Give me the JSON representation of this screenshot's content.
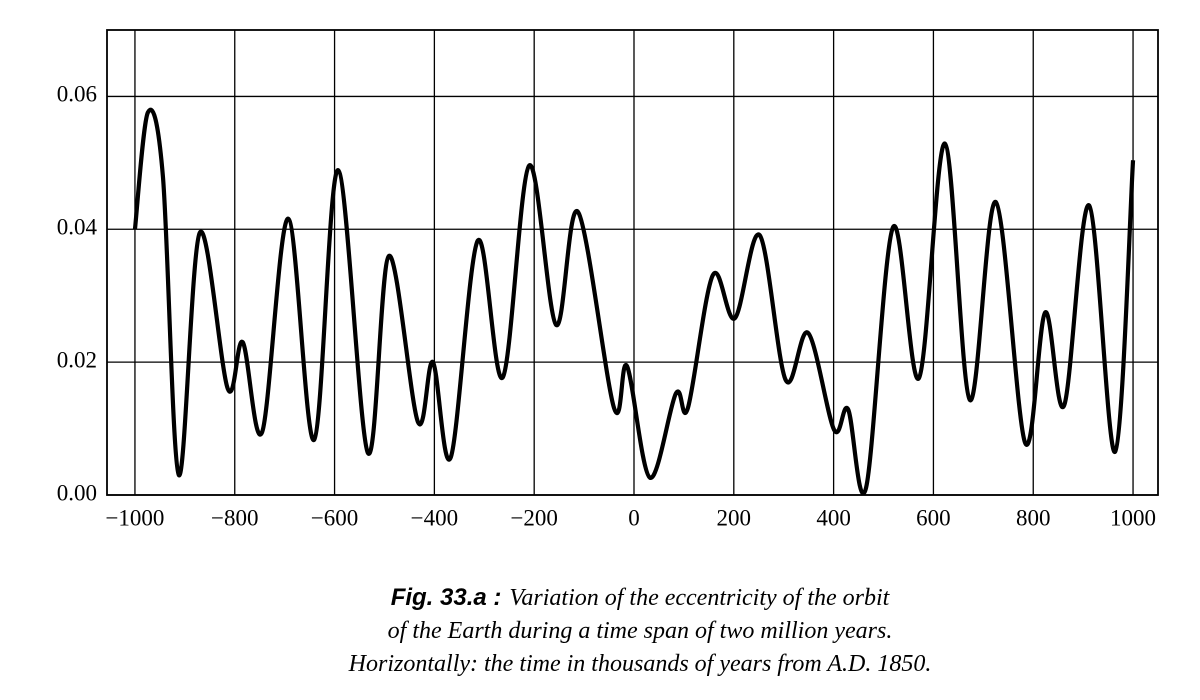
{
  "chart_data": {
    "type": "line",
    "x": [
      -1000,
      -974,
      -944,
      -912,
      -870,
      -814,
      -784,
      -745,
      -693,
      -641,
      -593,
      -533,
      -491,
      -433,
      -403,
      -367,
      -313,
      -263,
      -210,
      -156,
      -112,
      -40,
      -14,
      32,
      84,
      108,
      158,
      202,
      252,
      304,
      349,
      401,
      429,
      465,
      519,
      571,
      623,
      673,
      725,
      784,
      824,
      862,
      912,
      964,
      1000
    ],
    "values": [
      0.04,
      0.0576,
      0.048,
      0.003,
      0.0395,
      0.016,
      0.023,
      0.0095,
      0.0416,
      0.0083,
      0.0489,
      0.0063,
      0.036,
      0.011,
      0.02,
      0.0057,
      0.0383,
      0.0177,
      0.0496,
      0.0256,
      0.0426,
      0.0131,
      0.0194,
      0.0026,
      0.0153,
      0.0131,
      0.0331,
      0.0266,
      0.0391,
      0.0173,
      0.0244,
      0.0098,
      0.0129,
      0.0011,
      0.0403,
      0.0176,
      0.0529,
      0.0143,
      0.0441,
      0.0078,
      0.0275,
      0.0135,
      0.0436,
      0.0065,
      0.0504
    ],
    "color": "#000000",
    "xlim": [
      -1056,
      1050
    ],
    "ylim": [
      0,
      0.07
    ],
    "xticks": [
      {
        "value": -1000,
        "label": "−1000"
      },
      {
        "value": -800,
        "label": "−800"
      },
      {
        "value": -600,
        "label": "−600"
      },
      {
        "value": -400,
        "label": "−400"
      },
      {
        "value": -200,
        "label": "−200"
      },
      0,
      200,
      400,
      600,
      800,
      1000
    ],
    "yticks": [
      {
        "value": 0,
        "label": "0.00"
      },
      0.02,
      0.04,
      0.06
    ],
    "grid": true,
    "caption": {
      "label": "Fig. 33.a :",
      "lines": [
        "Variation of the eccentricity of the orbit",
        "of the Earth during a time span of two million years.",
        "Horizontally: the time in thousands of years from A.D. 1850."
      ]
    }
  }
}
